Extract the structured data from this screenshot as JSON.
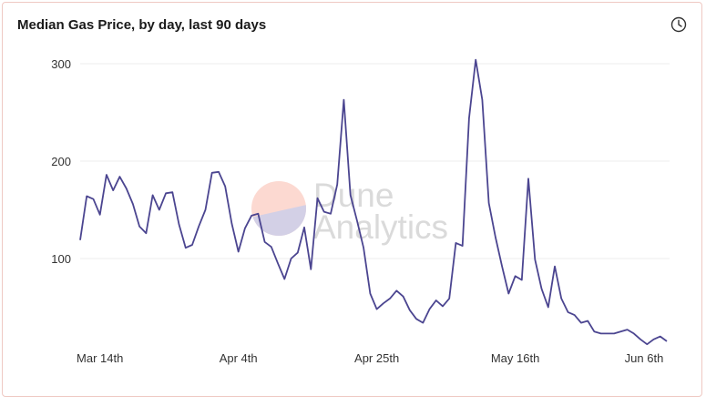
{
  "chart_data": {
    "type": "line",
    "title": "Median Gas Price, by day, last 90 days",
    "xlabel": "",
    "ylabel": "",
    "ylim": [
      0,
      310
    ],
    "yticks": [
      100,
      200,
      300
    ],
    "xticks": [
      "Mar 14th",
      "Apr 4th",
      "Apr 25th",
      "May 16th",
      "Jun 6th"
    ],
    "xtick_dates": [
      "Mar 14",
      "Apr 4",
      "Apr 25",
      "May 16",
      "Jun 6"
    ],
    "grid": true,
    "line_color": "#4b4590",
    "x": [
      "Mar 11",
      "Mar 12",
      "Mar 13",
      "Mar 14",
      "Mar 15",
      "Mar 16",
      "Mar 17",
      "Mar 18",
      "Mar 19",
      "Mar 20",
      "Mar 21",
      "Mar 22",
      "Mar 23",
      "Mar 24",
      "Mar 25",
      "Mar 26",
      "Mar 27",
      "Mar 28",
      "Mar 29",
      "Mar 30",
      "Mar 31",
      "Apr 1",
      "Apr 2",
      "Apr 3",
      "Apr 4",
      "Apr 5",
      "Apr 6",
      "Apr 7",
      "Apr 8",
      "Apr 9",
      "Apr 10",
      "Apr 11",
      "Apr 12",
      "Apr 13",
      "Apr 14",
      "Apr 15",
      "Apr 16",
      "Apr 17",
      "Apr 18",
      "Apr 19",
      "Apr 20",
      "Apr 21",
      "Apr 22",
      "Apr 23",
      "Apr 24",
      "Apr 25",
      "Apr 26",
      "Apr 27",
      "Apr 28",
      "Apr 29",
      "Apr 30",
      "May 1",
      "May 2",
      "May 3",
      "May 4",
      "May 5",
      "May 6",
      "May 7",
      "May 8",
      "May 9",
      "May 10",
      "May 11",
      "May 12",
      "May 13",
      "May 14",
      "May 15",
      "May 16",
      "May 17",
      "May 18",
      "May 19",
      "May 20",
      "May 21",
      "May 22",
      "May 23",
      "May 24",
      "May 25",
      "May 26",
      "May 27",
      "May 28",
      "May 29",
      "May 30",
      "May 31",
      "Jun 1",
      "Jun 2",
      "Jun 3",
      "Jun 4",
      "Jun 5",
      "Jun 6",
      "Jun 7",
      "Jun 8"
    ],
    "y": [
      119,
      164,
      161,
      145,
      186,
      170,
      184,
      172,
      156,
      133,
      126,
      165,
      150,
      167,
      168,
      135,
      111,
      114,
      133,
      150,
      188,
      189,
      174,
      136,
      107,
      131,
      144,
      146,
      117,
      112,
      95,
      79,
      100,
      106,
      132,
      89,
      162,
      148,
      146,
      176,
      263,
      165,
      139,
      111,
      64,
      48,
      54,
      59,
      67,
      61,
      47,
      38,
      34,
      48,
      57,
      51,
      59,
      116,
      113,
      244,
      304,
      263,
      157,
      122,
      92,
      64,
      82,
      78,
      182,
      99,
      69,
      50,
      92,
      59,
      45,
      42,
      34,
      36,
      25,
      23,
      23,
      23,
      25,
      27,
      23,
      17,
      12,
      17,
      20,
      15
    ]
  },
  "watermark": {
    "line1": "Dune",
    "line2": "Analytics",
    "colors": {
      "top": "#fcd9d1",
      "bottom": "#d3d0e6"
    }
  },
  "icons": {
    "clock": "clock-icon"
  }
}
